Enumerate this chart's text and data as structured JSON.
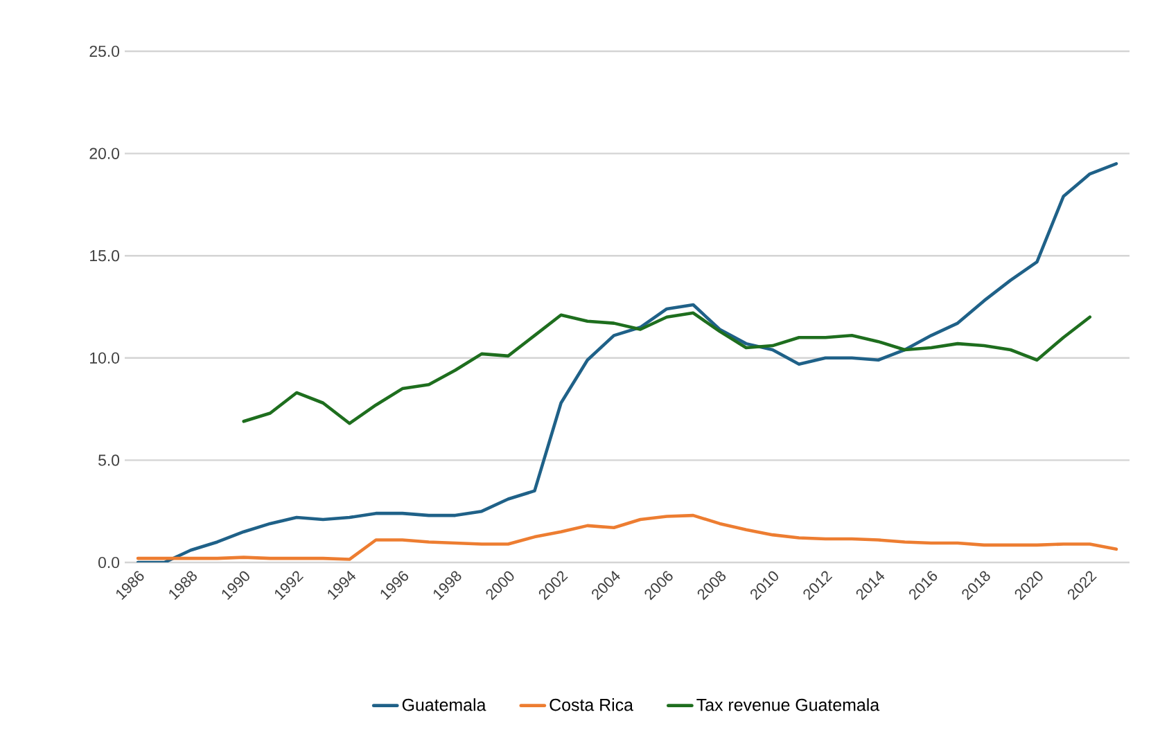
{
  "chart_data": {
    "type": "line",
    "categories": [
      "1986",
      null,
      "1988",
      null,
      "1990",
      null,
      "1992",
      null,
      "1994",
      null,
      "1996",
      null,
      "1998",
      null,
      "2000",
      null,
      "2002",
      null,
      "2004",
      null,
      "2006",
      null,
      "2008",
      null,
      "2010",
      null,
      "2012",
      null,
      "2014",
      null,
      "2016",
      null,
      "2018",
      null,
      "2020",
      null,
      "2022",
      null
    ],
    "series": [
      {
        "name": "Guatemala",
        "color": "#1f6188",
        "values": [
          0.0,
          0.0,
          0.6,
          1.0,
          1.5,
          1.9,
          2.2,
          2.1,
          2.2,
          2.4,
          2.4,
          2.3,
          2.3,
          2.5,
          3.1,
          3.5,
          7.8,
          9.9,
          11.1,
          11.5,
          12.4,
          12.6,
          11.4,
          10.7,
          10.4,
          9.7,
          10.0,
          10.0,
          9.9,
          10.4,
          11.1,
          11.7,
          12.8,
          13.8,
          14.7,
          17.9,
          19.0,
          19.5
        ]
      },
      {
        "name": "Costa Rica",
        "color": "#ed7d31",
        "values": [
          0.2,
          0.2,
          0.2,
          0.2,
          0.25,
          0.2,
          0.2,
          0.2,
          0.15,
          1.1,
          1.1,
          1.0,
          0.95,
          0.9,
          0.9,
          1.25,
          1.5,
          1.8,
          1.7,
          2.1,
          2.25,
          2.3,
          1.9,
          1.6,
          1.35,
          1.2,
          1.15,
          1.15,
          1.1,
          1.0,
          0.95,
          0.95,
          0.85,
          0.85,
          0.85,
          0.9,
          0.9,
          0.65
        ]
      },
      {
        "name": "Tax revenue Guatemala",
        "color": "#1e6e1e",
        "values": [
          null,
          null,
          null,
          null,
          6.9,
          7.3,
          8.3,
          7.8,
          6.8,
          7.7,
          8.5,
          8.7,
          9.4,
          10.2,
          10.1,
          11.1,
          12.1,
          11.8,
          11.7,
          11.4,
          12.0,
          12.2,
          11.3,
          10.5,
          10.6,
          11.0,
          11.0,
          11.1,
          10.8,
          10.4,
          10.5,
          10.7,
          10.6,
          10.4,
          9.9,
          11.0,
          12.0,
          null
        ]
      }
    ],
    "ylim": [
      0,
      25
    ],
    "yticks": [
      {
        "value": 0,
        "label": "0.0"
      },
      {
        "value": 5,
        "label": "5.0"
      },
      {
        "value": 10,
        "label": "10.0"
      },
      {
        "value": 15,
        "label": "15.0"
      },
      {
        "value": 20,
        "label": "20.0"
      },
      {
        "value": 25,
        "label": "25.0"
      }
    ],
    "grid": "y",
    "legend": "bottom",
    "marker": "none",
    "line_style": "solid"
  }
}
